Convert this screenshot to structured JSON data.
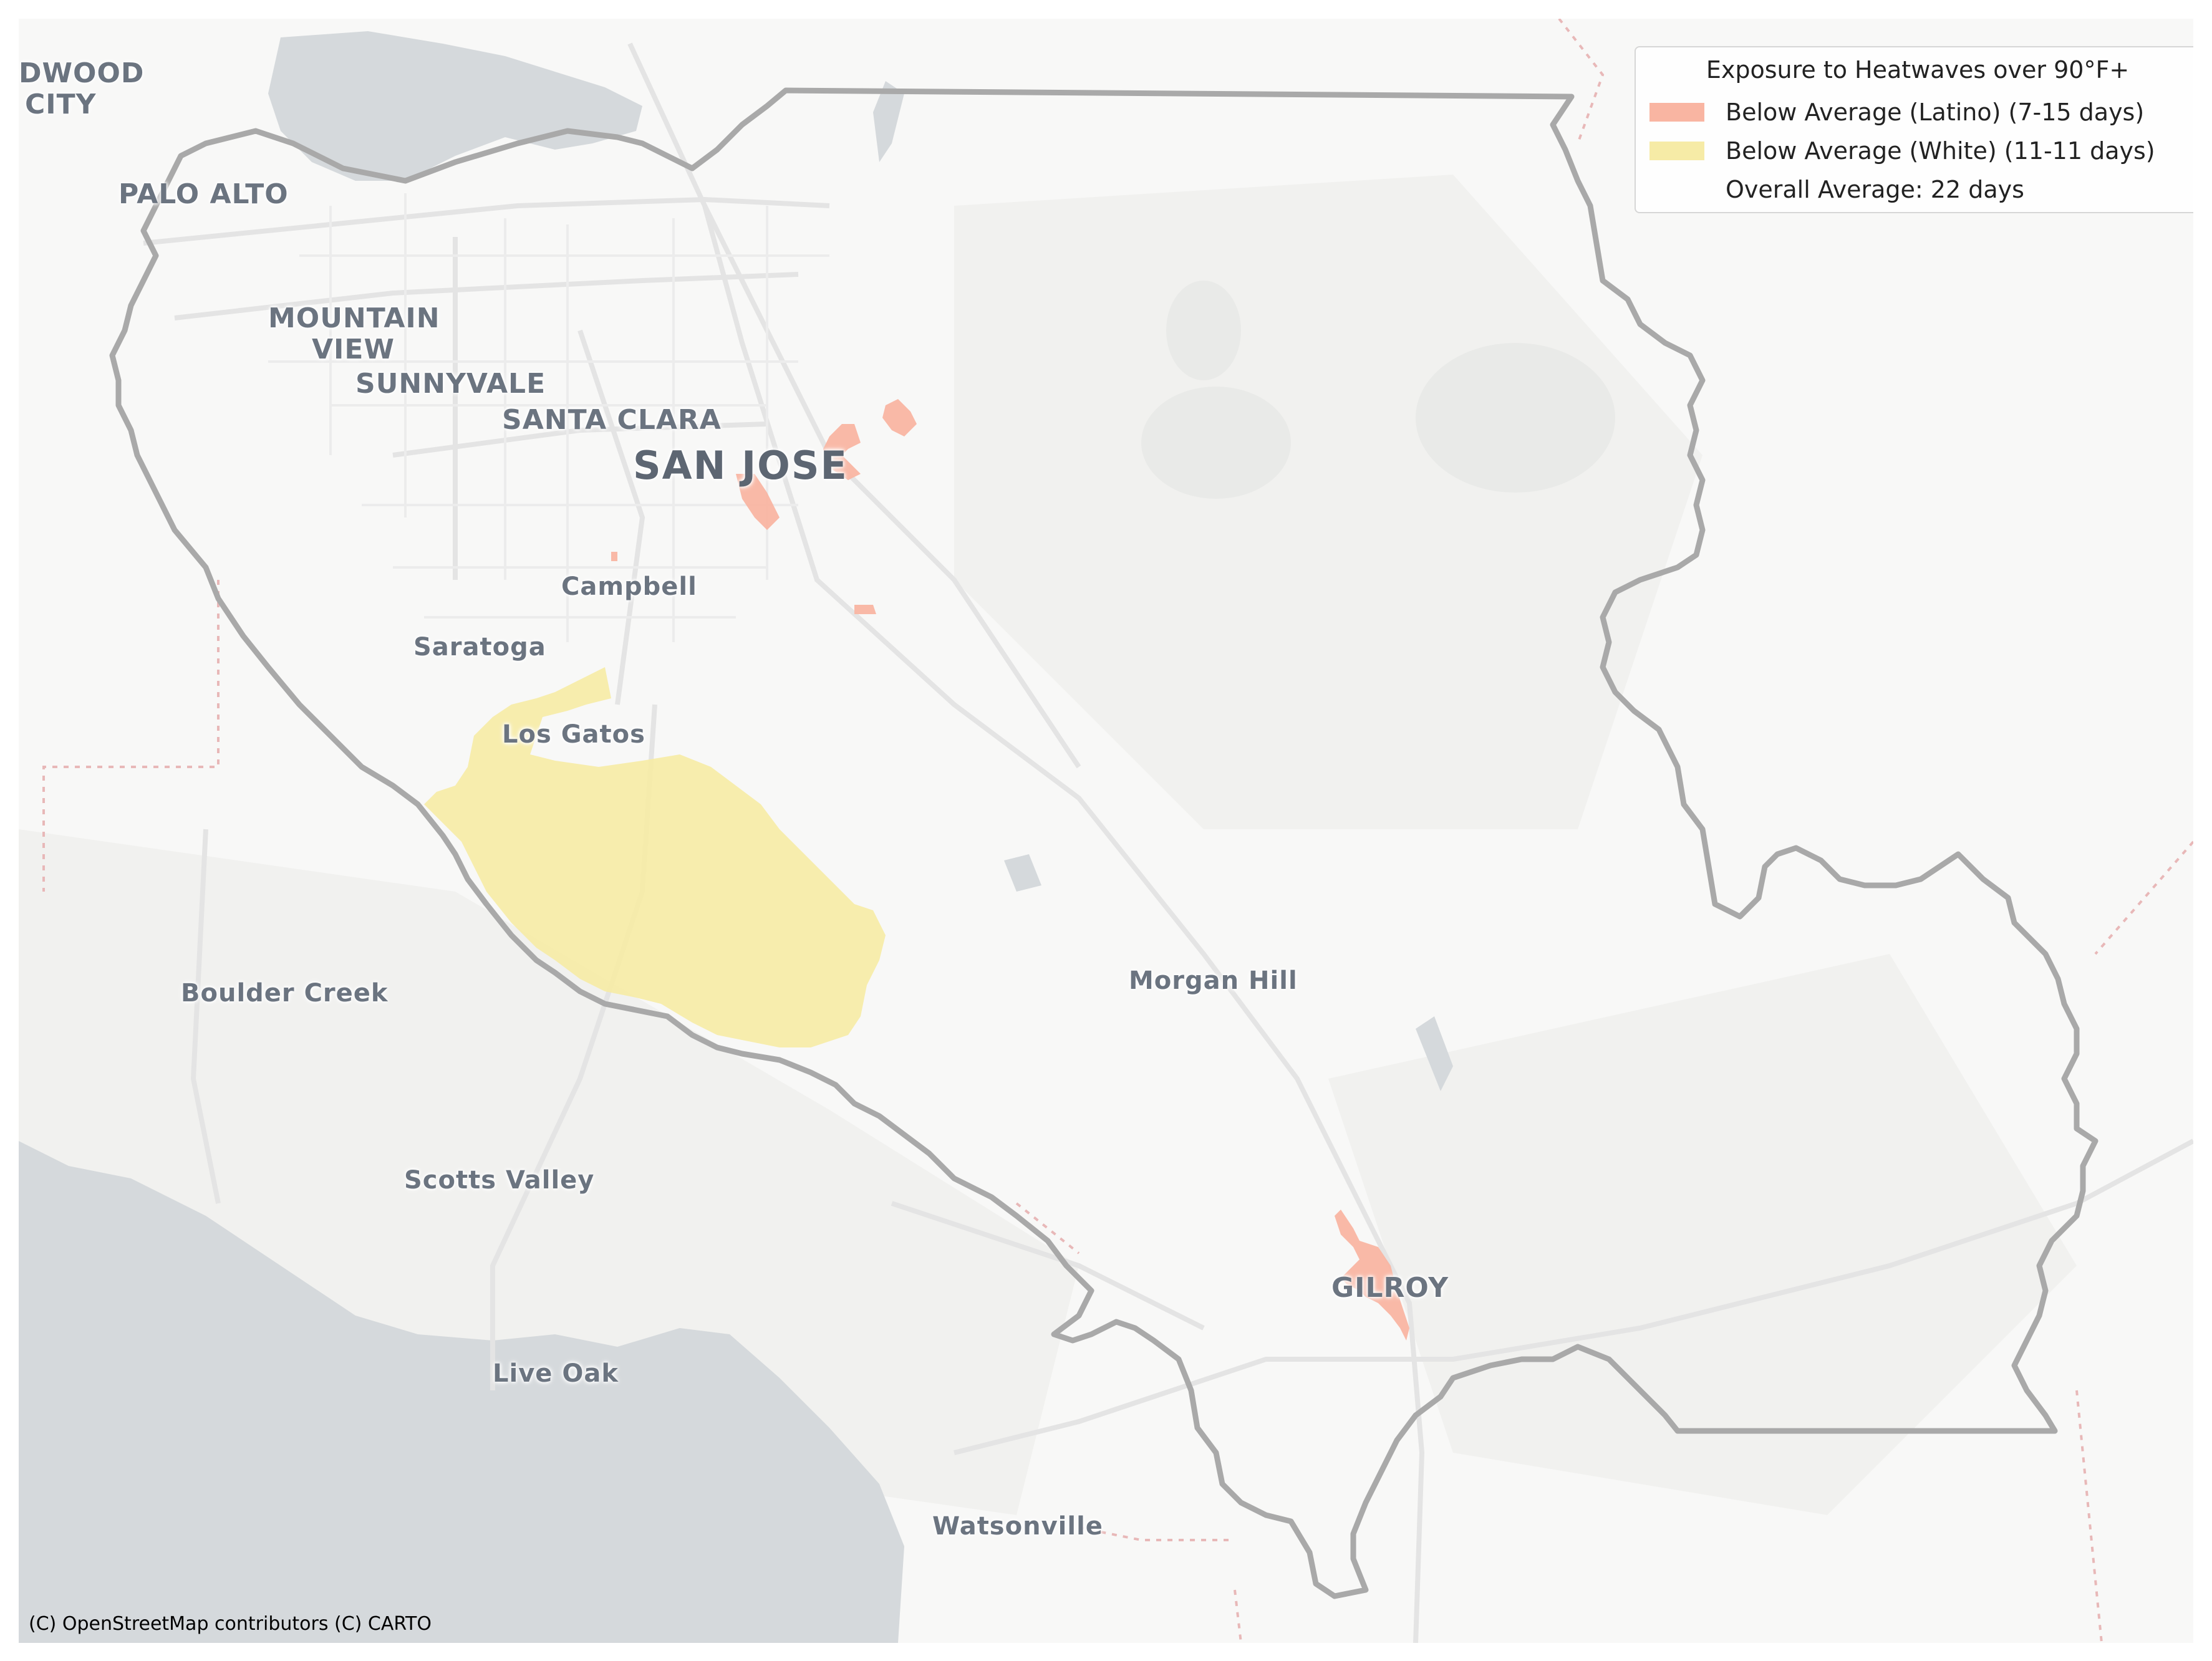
{
  "legend": {
    "title": "Exposure to Heatwaves over 90°F+",
    "items": [
      {
        "label": "Below Average (Latino) (7-15 days)",
        "color": "#f9b5a2"
      },
      {
        "label": "Below Average (White) (11-11 days)",
        "color": "#f6eba6"
      },
      {
        "label": "Overall Average: 22 days",
        "color": "none"
      }
    ]
  },
  "places": {
    "redwood_city_1": "DWOOD",
    "redwood_city_2": "CITY",
    "palo_alto": "PALO ALTO",
    "mountain_view_1": "MOUNTAIN",
    "mountain_view_2": "VIEW",
    "sunnyvale": "SUNNYVALE",
    "santa_clara": "SANTA CLARA",
    "san_jose": "SAN JOSE",
    "campbell": "Campbell",
    "saratoga": "Saratoga",
    "los_gatos": "Los Gatos",
    "boulder_creek": "Boulder Creek",
    "morgan_hill": "Morgan Hill",
    "scotts_valley": "Scotts Valley",
    "gilroy": "GILROY",
    "live_oak": "Live Oak",
    "watsonville": "Watsonville"
  },
  "attribution": "(C) OpenStreetMap contributors (C) CARTO",
  "colors": {
    "water": "#d5d9dc",
    "land": "#f8f8f7",
    "county_boundary": "#a9a9a9",
    "latino_fill": "#f9b5a2",
    "white_fill": "#f6eba6"
  }
}
